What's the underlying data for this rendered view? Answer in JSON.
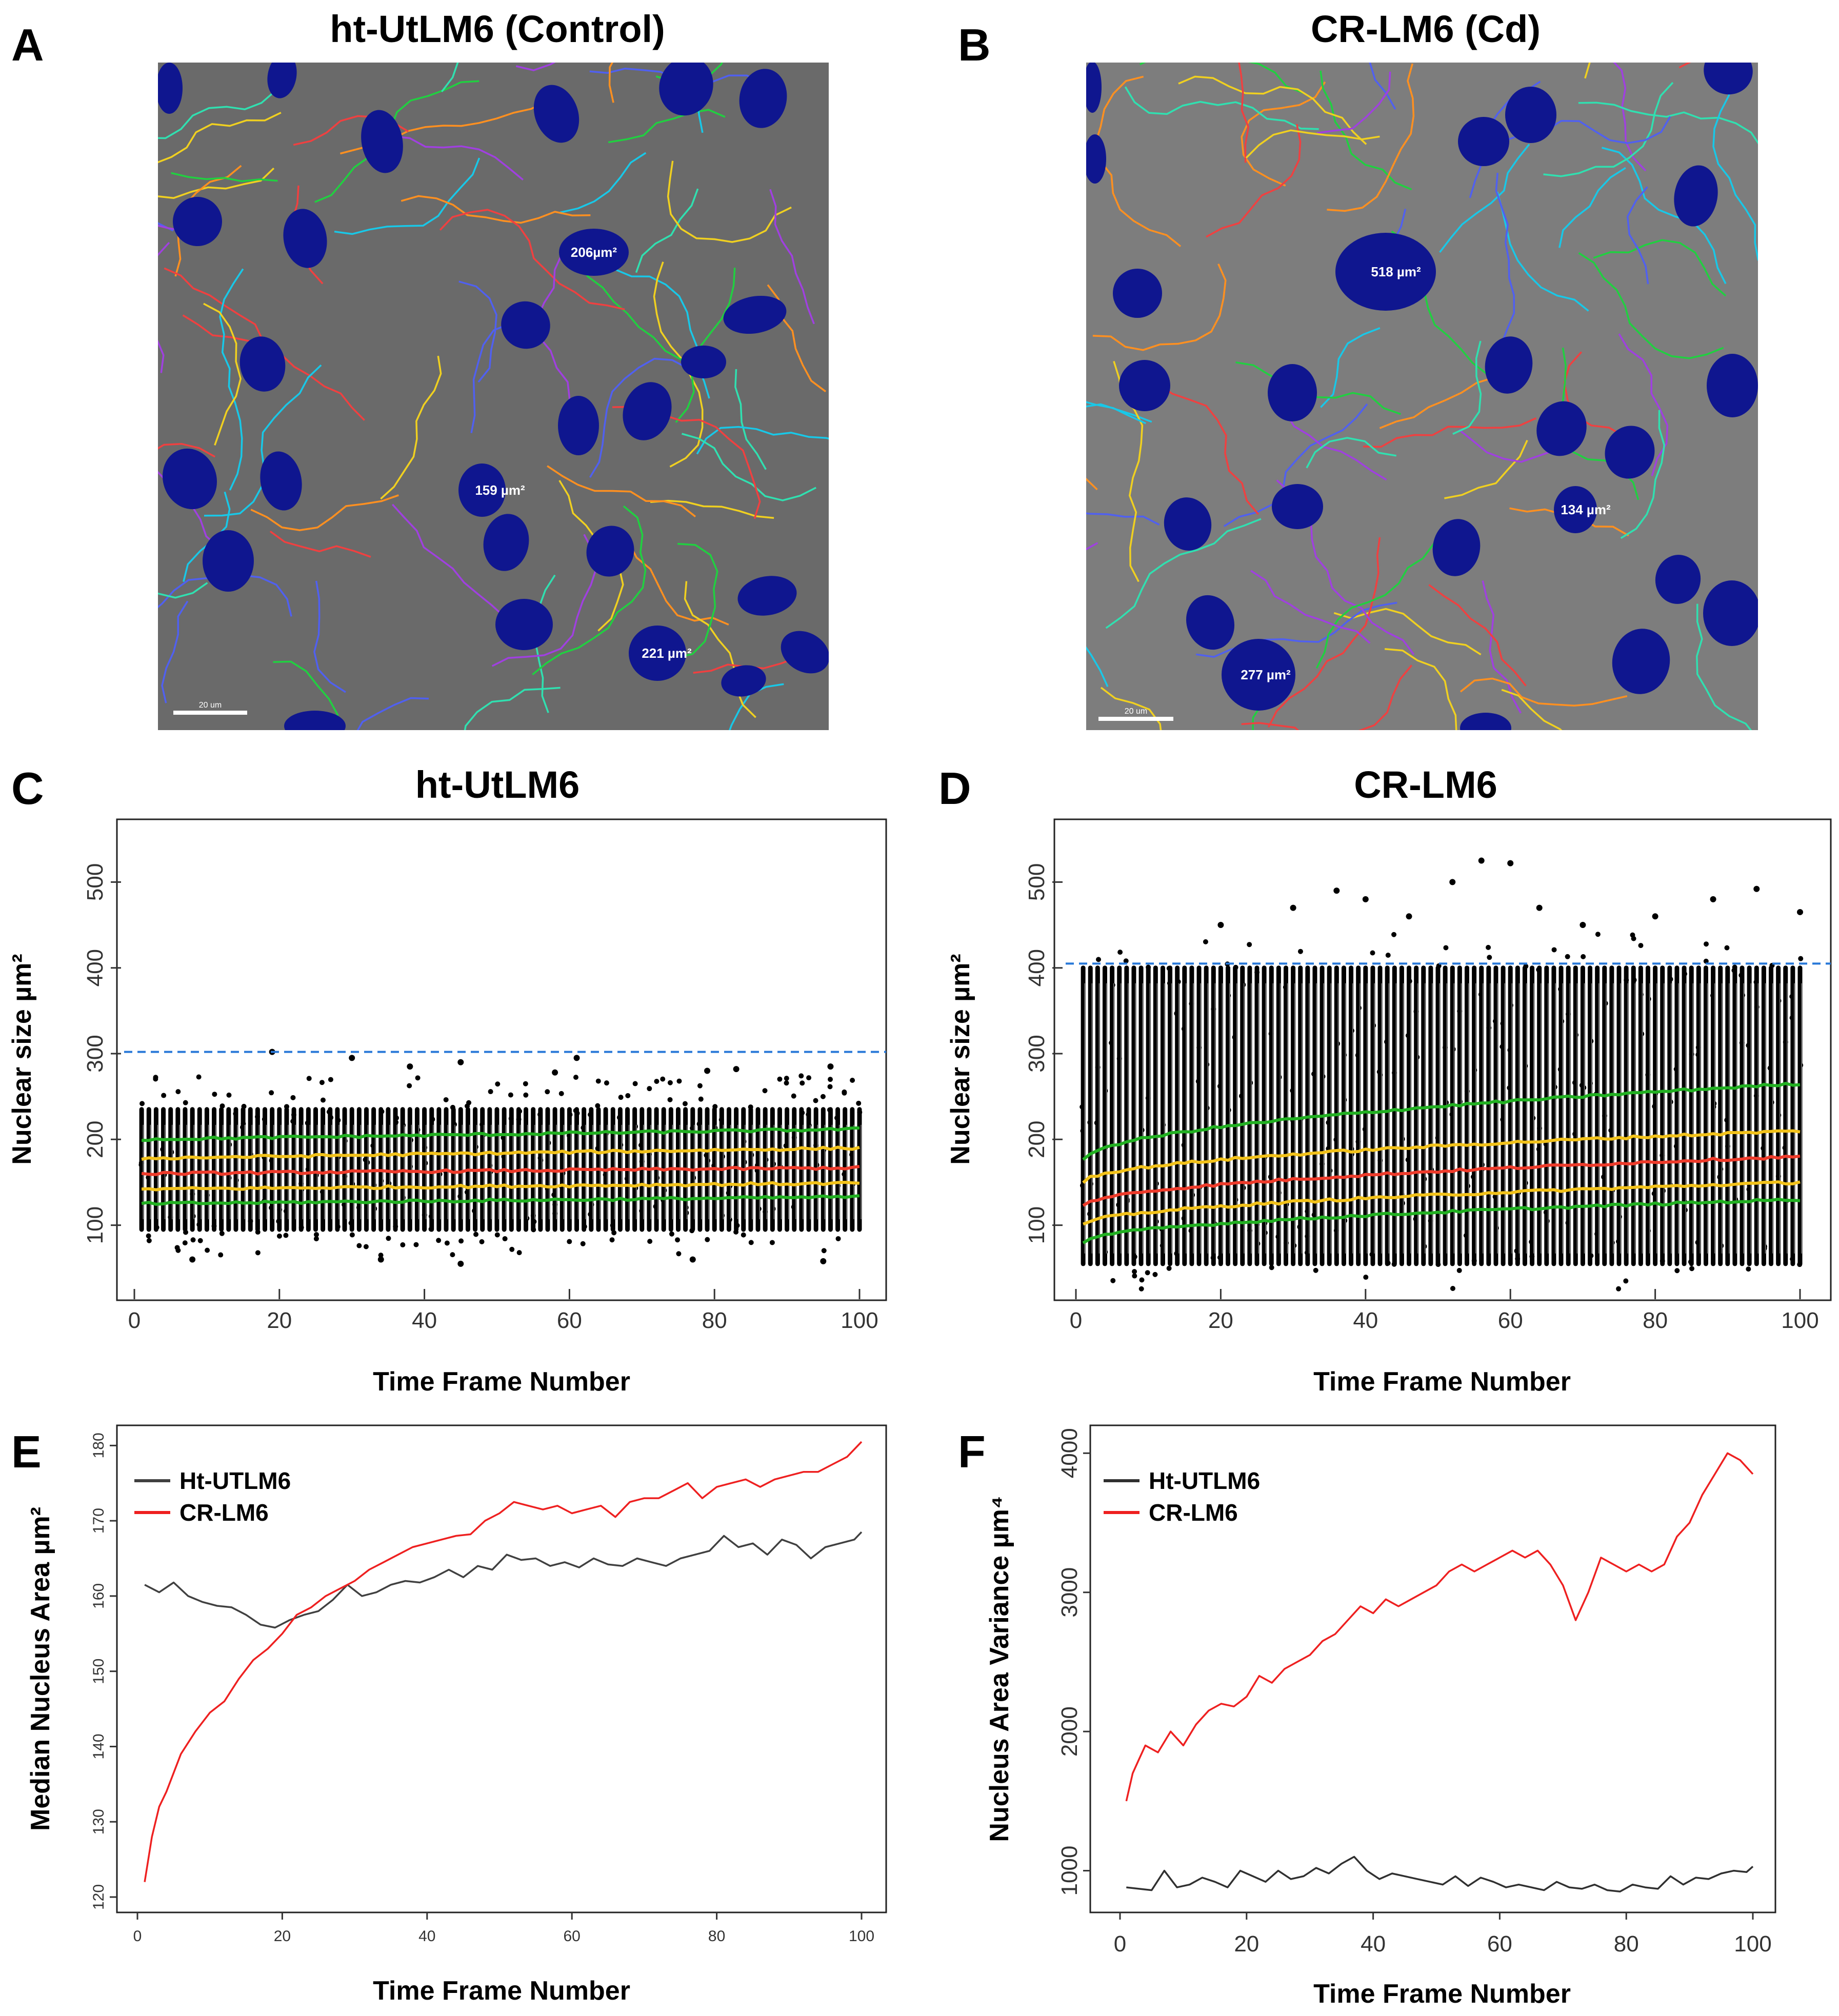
{
  "panel_labels": [
    "A",
    "B",
    "C",
    "D",
    "E",
    "F"
  ],
  "micro": [
    {
      "title": "ht-UtLM6 (Control)",
      "annotations": [
        "206µm²",
        "159 µm²",
        "221 µm²"
      ],
      "scalebar": "20 um",
      "colors": {
        "bg": "#6a6a6a",
        "nucleus": "#0f168f"
      }
    },
    {
      "title": "CR-LM6 (Cd)",
      "annotations": [
        "518 µm²",
        "134 µm²",
        "277 µm²"
      ],
      "scalebar": "20 um",
      "colors": {
        "bg": "#7d7d7d",
        "nucleus": "#0f168f"
      }
    }
  ],
  "chart_data": [
    {
      "panel": "C",
      "type": "scatter",
      "title": "ht-UtLM6",
      "xlabel": "Time Frame Number",
      "ylabel": "Nuclear size µm²",
      "xlim": [
        0,
        100
      ],
      "ylim": [
        40,
        560
      ],
      "xticks": [
        0,
        20,
        40,
        60,
        80,
        100
      ],
      "yticks": [
        100,
        200,
        300,
        400,
        500
      ],
      "threshold": 302,
      "frames": 100,
      "point_range": {
        "min": 95,
        "max": 235
      },
      "outliers": [
        [
          19,
          302
        ],
        [
          30,
          295
        ],
        [
          38,
          285
        ],
        [
          45,
          290
        ],
        [
          58,
          278
        ],
        [
          61,
          295
        ],
        [
          79,
          280
        ],
        [
          83,
          282
        ],
        [
          96,
          285
        ],
        [
          8,
          60
        ],
        [
          34,
          60
        ],
        [
          45,
          55
        ],
        [
          77,
          60
        ],
        [
          95,
          58
        ]
      ],
      "quantile_lines": [
        {
          "name": "upper-green",
          "color": "#22b022",
          "start": 200,
          "end": 212
        },
        {
          "name": "upper-yellow",
          "color": "#f2c21a",
          "start": 178,
          "end": 190
        },
        {
          "name": "median-red",
          "color": "#ee3b2b",
          "start": 160,
          "end": 167
        },
        {
          "name": "lower-yellow",
          "color": "#f2c21a",
          "start": 142,
          "end": 149
        },
        {
          "name": "lower-green",
          "color": "#22b022",
          "start": 125,
          "end": 133
        }
      ]
    },
    {
      "panel": "D",
      "type": "scatter",
      "title": "CR-LM6",
      "xlabel": "Time Frame Number",
      "ylabel": "Nuclear size µm²",
      "xlim": [
        0,
        100
      ],
      "ylim": [
        40,
        560
      ],
      "xticks": [
        0,
        20,
        40,
        60,
        80,
        100
      ],
      "yticks": [
        100,
        200,
        300,
        400,
        500
      ],
      "threshold": 405,
      "frames": 100,
      "point_range": {
        "min": 55,
        "max": 400
      },
      "outliers": [
        [
          20,
          450
        ],
        [
          30,
          470
        ],
        [
          36,
          490
        ],
        [
          40,
          480
        ],
        [
          46,
          460
        ],
        [
          52,
          500
        ],
        [
          56,
          525
        ],
        [
          60,
          522
        ],
        [
          64,
          470
        ],
        [
          70,
          450
        ],
        [
          80,
          460
        ],
        [
          88,
          480
        ],
        [
          94,
          492
        ],
        [
          100,
          465
        ]
      ],
      "quantile_lines": [
        {
          "name": "upper-green",
          "color": "#22b022",
          "start": 175,
          "end": 265
        },
        {
          "name": "upper-yellow",
          "color": "#f2c21a",
          "start": 150,
          "end": 210
        },
        {
          "name": "median-red",
          "color": "#ee3b2b",
          "start": 122,
          "end": 180
        },
        {
          "name": "lower-yellow",
          "color": "#f2c21a",
          "start": 100,
          "end": 150
        },
        {
          "name": "lower-green",
          "color": "#22b022",
          "start": 80,
          "end": 130
        }
      ]
    },
    {
      "panel": "E",
      "type": "line",
      "title": "",
      "xlabel": "Time Frame Number",
      "ylabel": "Median Nucleus Area µm²",
      "xlim": [
        0,
        100
      ],
      "ylim": [
        120,
        182
      ],
      "xticks": [
        0,
        20,
        40,
        60,
        80,
        100
      ],
      "yticks": [
        120,
        130,
        140,
        150,
        160,
        170,
        180
      ],
      "series": [
        {
          "name": "Ht-UTLM6",
          "color": "#404040",
          "x": [
            1,
            3,
            5,
            7,
            9,
            11,
            13,
            15,
            17,
            19,
            21,
            23,
            25,
            27,
            29,
            31,
            33,
            35,
            37,
            39,
            41,
            43,
            45,
            47,
            49,
            51,
            53,
            55,
            57,
            59,
            61,
            63,
            65,
            67,
            69,
            71,
            73,
            75,
            77,
            79,
            81,
            83,
            85,
            87,
            89,
            91,
            93,
            95,
            97,
            99,
            100
          ],
          "values": [
            161.5,
            160.5,
            161.8,
            160.0,
            159.2,
            158.7,
            158.5,
            157.5,
            156.2,
            155.8,
            156.8,
            157.5,
            158.0,
            159.5,
            161.5,
            160.0,
            160.5,
            161.5,
            162.0,
            161.8,
            162.5,
            163.5,
            162.5,
            164.0,
            163.5,
            165.5,
            164.8,
            165.0,
            164.0,
            164.5,
            163.8,
            165.0,
            164.2,
            164.0,
            165.0,
            164.5,
            164.0,
            165.0,
            165.5,
            166.0,
            168.0,
            166.5,
            167.0,
            165.5,
            167.5,
            166.8,
            165.0,
            166.5,
            167.0,
            167.5,
            168.5
          ]
        },
        {
          "name": "CR-LM6",
          "color": "#ee2020",
          "x": [
            1,
            2,
            3,
            4,
            6,
            8,
            10,
            12,
            14,
            16,
            18,
            20,
            22,
            24,
            26,
            28,
            30,
            32,
            34,
            36,
            38,
            40,
            42,
            44,
            46,
            48,
            50,
            52,
            54,
            56,
            58,
            60,
            62,
            64,
            66,
            68,
            70,
            72,
            74,
            76,
            78,
            80,
            82,
            84,
            86,
            88,
            90,
            92,
            94,
            96,
            98,
            100
          ],
          "values": [
            122,
            128,
            132,
            134,
            139,
            142,
            144.5,
            146,
            149,
            151.5,
            153,
            155,
            157.5,
            158.5,
            160,
            161,
            162,
            163.5,
            164.5,
            165.5,
            166.5,
            167,
            167.5,
            168,
            168.2,
            170,
            171,
            172.5,
            172,
            171.5,
            172,
            171,
            171.5,
            172,
            170.5,
            172.5,
            173,
            173,
            174,
            175,
            173,
            174.5,
            175,
            175.5,
            174.5,
            175.5,
            176,
            176.5,
            176.5,
            177.5,
            178.5,
            180.5
          ]
        }
      ],
      "legend_position": "top-left"
    },
    {
      "panel": "F",
      "type": "line",
      "title": "",
      "xlabel": "Time Frame Number",
      "ylabel": "Nucleus Area Variance µm⁴",
      "xlim": [
        0,
        100
      ],
      "ylim": [
        700,
        4200
      ],
      "xticks": [
        0,
        20,
        40,
        60,
        80,
        100
      ],
      "yticks": [
        1000,
        2000,
        3000,
        4000
      ],
      "series": [
        {
          "name": "Ht-UTLM6",
          "color": "#303030",
          "x": [
            1,
            3,
            5,
            7,
            9,
            11,
            13,
            15,
            17,
            19,
            21,
            23,
            25,
            27,
            29,
            31,
            33,
            35,
            37,
            39,
            41,
            43,
            45,
            47,
            49,
            51,
            53,
            55,
            57,
            59,
            61,
            63,
            65,
            67,
            69,
            71,
            73,
            75,
            77,
            79,
            81,
            83,
            85,
            87,
            89,
            91,
            93,
            95,
            97,
            99,
            100
          ],
          "values": [
            880,
            870,
            860,
            1000,
            880,
            900,
            950,
            920,
            880,
            1000,
            960,
            920,
            1000,
            940,
            960,
            1020,
            980,
            1050,
            1100,
            1000,
            940,
            980,
            960,
            940,
            920,
            900,
            960,
            890,
            950,
            920,
            880,
            900,
            880,
            860,
            920,
            880,
            870,
            900,
            860,
            850,
            900,
            880,
            870,
            960,
            900,
            950,
            940,
            980,
            1000,
            990,
            1030
          ]
        },
        {
          "name": "CR-LM6",
          "color": "#ee2020",
          "x": [
            1,
            2,
            3,
            4,
            6,
            8,
            10,
            12,
            14,
            16,
            18,
            20,
            22,
            24,
            26,
            28,
            30,
            32,
            34,
            36,
            38,
            40,
            42,
            44,
            46,
            48,
            50,
            52,
            54,
            56,
            58,
            60,
            62,
            64,
            66,
            68,
            70,
            72,
            74,
            76,
            78,
            80,
            82,
            84,
            86,
            88,
            90,
            92,
            94,
            96,
            98,
            100
          ],
          "values": [
            1500,
            1700,
            1800,
            1900,
            1850,
            2000,
            1900,
            2050,
            2150,
            2200,
            2180,
            2250,
            2400,
            2350,
            2450,
            2500,
            2550,
            2650,
            2700,
            2800,
            2900,
            2850,
            2950,
            2900,
            2950,
            3000,
            3050,
            3150,
            3200,
            3150,
            3200,
            3250,
            3300,
            3250,
            3300,
            3200,
            3050,
            2800,
            3000,
            3250,
            3200,
            3150,
            3200,
            3150,
            3200,
            3400,
            3500,
            3700,
            3850,
            4000,
            3950,
            3850
          ]
        }
      ],
      "legend_position": "top-left"
    }
  ]
}
